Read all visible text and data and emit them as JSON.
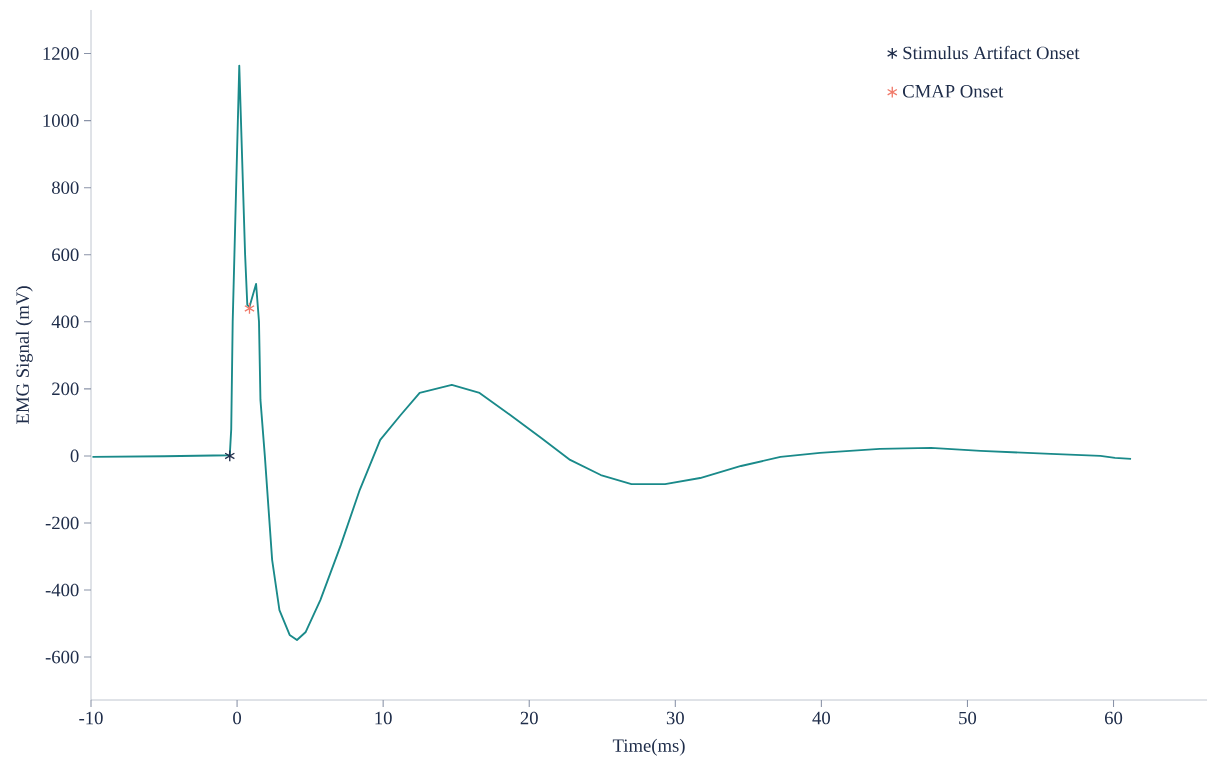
{
  "chart_data": {
    "type": "line",
    "xlabel": "Time(ms)",
    "ylabel": "EMG Signal (mV)",
    "xlim": [
      -10,
      66.4
    ],
    "ylim": [
      -728,
      1330
    ],
    "xticks": [
      -10,
      0,
      10,
      20,
      30,
      40,
      50,
      60
    ],
    "yticks": [
      -600,
      -400,
      -200,
      0,
      200,
      400,
      600,
      800,
      1000,
      1200
    ],
    "grid": false,
    "legend": "top right",
    "series": [
      {
        "color": "#1a8a8a",
        "marker": "none",
        "line_style": "solid",
        "x": [
          -9.9,
          -5,
          -0.5,
          -0.4,
          -0.3,
          0.15,
          0.55,
          0.7,
          0.85,
          1.3,
          1.5,
          1.6,
          1.9,
          2.4,
          2.9,
          3.6,
          4.1,
          4.7,
          5.7,
          7.1,
          8.4,
          9.8,
          11.2,
          12.5,
          14.7,
          16.6,
          18.7,
          20.8,
          22.8,
          24.9,
          27,
          29.3,
          31.7,
          34.5,
          37.2,
          39.9,
          44,
          47.5,
          50.9,
          55.7,
          59.1,
          60.1,
          61.2
        ],
        "values": [
          -3,
          -1,
          2,
          80,
          400,
          1164,
          600,
          450,
          445,
          513,
          400,
          167,
          0,
          -310,
          -460,
          -534,
          -549,
          -525,
          -430,
          -266,
          -101,
          48,
          122,
          188,
          212,
          188,
          122,
          54,
          -12,
          -57,
          -84,
          -84,
          -66,
          -30,
          -3,
          9,
          21,
          24,
          15,
          6,
          0,
          -6,
          -9
        ]
      },
      {
        "type": "scatter",
        "name": "Stimulus Artifact Onset",
        "color": "#1f2d4a",
        "marker": "cross",
        "x": [
          -0.5
        ],
        "values": [
          0
        ]
      },
      {
        "type": "scatter",
        "name": "CMAP Onset",
        "color": "#f07a6a",
        "marker": "cross",
        "x": [
          0.85
        ],
        "values": [
          440
        ]
      }
    ]
  }
}
